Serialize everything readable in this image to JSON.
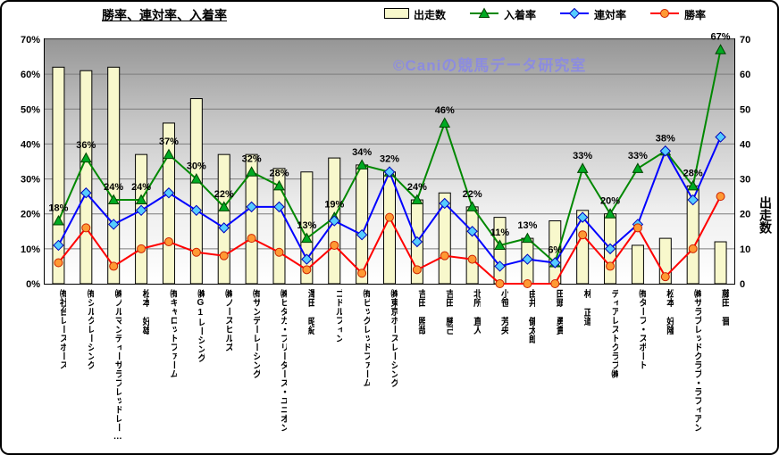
{
  "chart": {
    "title": "勝率、連対率、入着率",
    "watermark": "©Caniの競馬データ研究室",
    "right_axis_title": "出走数"
  },
  "legend": {
    "items": [
      {
        "label": "出走数",
        "icon": "bar-swatch"
      },
      {
        "label": "入着率",
        "icon": "green-triangle-line"
      },
      {
        "label": "連対率",
        "icon": "blue-diamond-line"
      },
      {
        "label": "勝率",
        "icon": "red-circle-line"
      }
    ]
  },
  "chart_data": {
    "type": "bar",
    "subtype": "combo bar + 3 line series",
    "title": "勝率、連対率、入着率",
    "grid": true,
    "grid_color": "#7d7d7d",
    "legend_position": "top",
    "categories": [
      "㈲社台レースホース",
      "㈲シルクレーシング",
      "㈱ノルマンディーサラブレッドレー…",
      "松本 好雄",
      "㈲キャロットファーム",
      "㈱G1レーシング",
      "㈱ノースヒルズ",
      "㈲サンデーレーシング",
      "㈱ヒダカ・ブリーダーズ・ユニオン",
      "澤田 昭紀",
      "ゴドルフィン",
      "㈲ビッグレッドファーム",
      "㈱東京ホースレーシング",
      "吉田 照哉",
      "吉田 勝己",
      "北所 直人",
      "小笹 芳央",
      "由井 健太郎",
      "田頭 勇貴",
      "林 正道",
      "ディアレストクラブ㈱",
      "㈲ターフ・スポート",
      "松本 好隆",
      "㈱サラブレッドクラブ・ラフィアン",
      "藤田 晋"
    ],
    "bar_series": {
      "name": "出走数",
      "axis": "right",
      "fill": "#f8f8cc",
      "stroke": "#000000",
      "values": [
        62,
        61,
        62,
        37,
        46,
        53,
        37,
        37,
        33,
        32,
        36,
        34,
        32,
        24,
        26,
        22,
        19,
        13,
        18,
        21,
        20,
        11,
        13,
        28,
        12
      ]
    },
    "line_series": [
      {
        "name": "入着率",
        "marker": "triangle",
        "color": "#008800",
        "marker_fill": "#00aa22",
        "marker_stroke": "#004400",
        "values": [
          18,
          36,
          24,
          24,
          37,
          30,
          22,
          32,
          28,
          13,
          19,
          34,
          32,
          24,
          46,
          22,
          11,
          13,
          6,
          33,
          20,
          33,
          38,
          28,
          67
        ],
        "point_labels": [
          "18%",
          "36%",
          "24%",
          "24%",
          "37%",
          "30%",
          "22%",
          "32%",
          "28%",
          "13%",
          "19%",
          "34%",
          "32%",
          "24%",
          "46%",
          "22%",
          "11%",
          "13%",
          "6%",
          "33%",
          "20%",
          "33%",
          "38%",
          "28%",
          "67%"
        ]
      },
      {
        "name": "連対率",
        "marker": "diamond",
        "color": "#0000ff",
        "marker_fill": "#55ccff",
        "marker_stroke": "#0000bb",
        "values": [
          11,
          26,
          17,
          21,
          26,
          21,
          16,
          22,
          22,
          7,
          18,
          14,
          32,
          12,
          23,
          15,
          5,
          7,
          6,
          19,
          10,
          17,
          38,
          24,
          42
        ]
      },
      {
        "name": "勝率",
        "marker": "circle",
        "color": "#ff0000",
        "marker_fill": "#ff9933",
        "marker_stroke": "#cc2200",
        "values": [
          6,
          16,
          5,
          10,
          12,
          9,
          8,
          13,
          9,
          4,
          11,
          3,
          19,
          4,
          8,
          7,
          0,
          0,
          0,
          14,
          5,
          16,
          2,
          10,
          25
        ]
      }
    ],
    "left_axis": {
      "min": 0,
      "max": 70,
      "ticks": [
        "0%",
        "10%",
        "20%",
        "30%",
        "40%",
        "50%",
        "60%",
        "70%"
      ]
    },
    "right_axis": {
      "min": 0,
      "max": 70,
      "title": "出走数",
      "ticks": [
        "0",
        "10",
        "20",
        "30",
        "40",
        "50",
        "60",
        "70"
      ]
    }
  }
}
